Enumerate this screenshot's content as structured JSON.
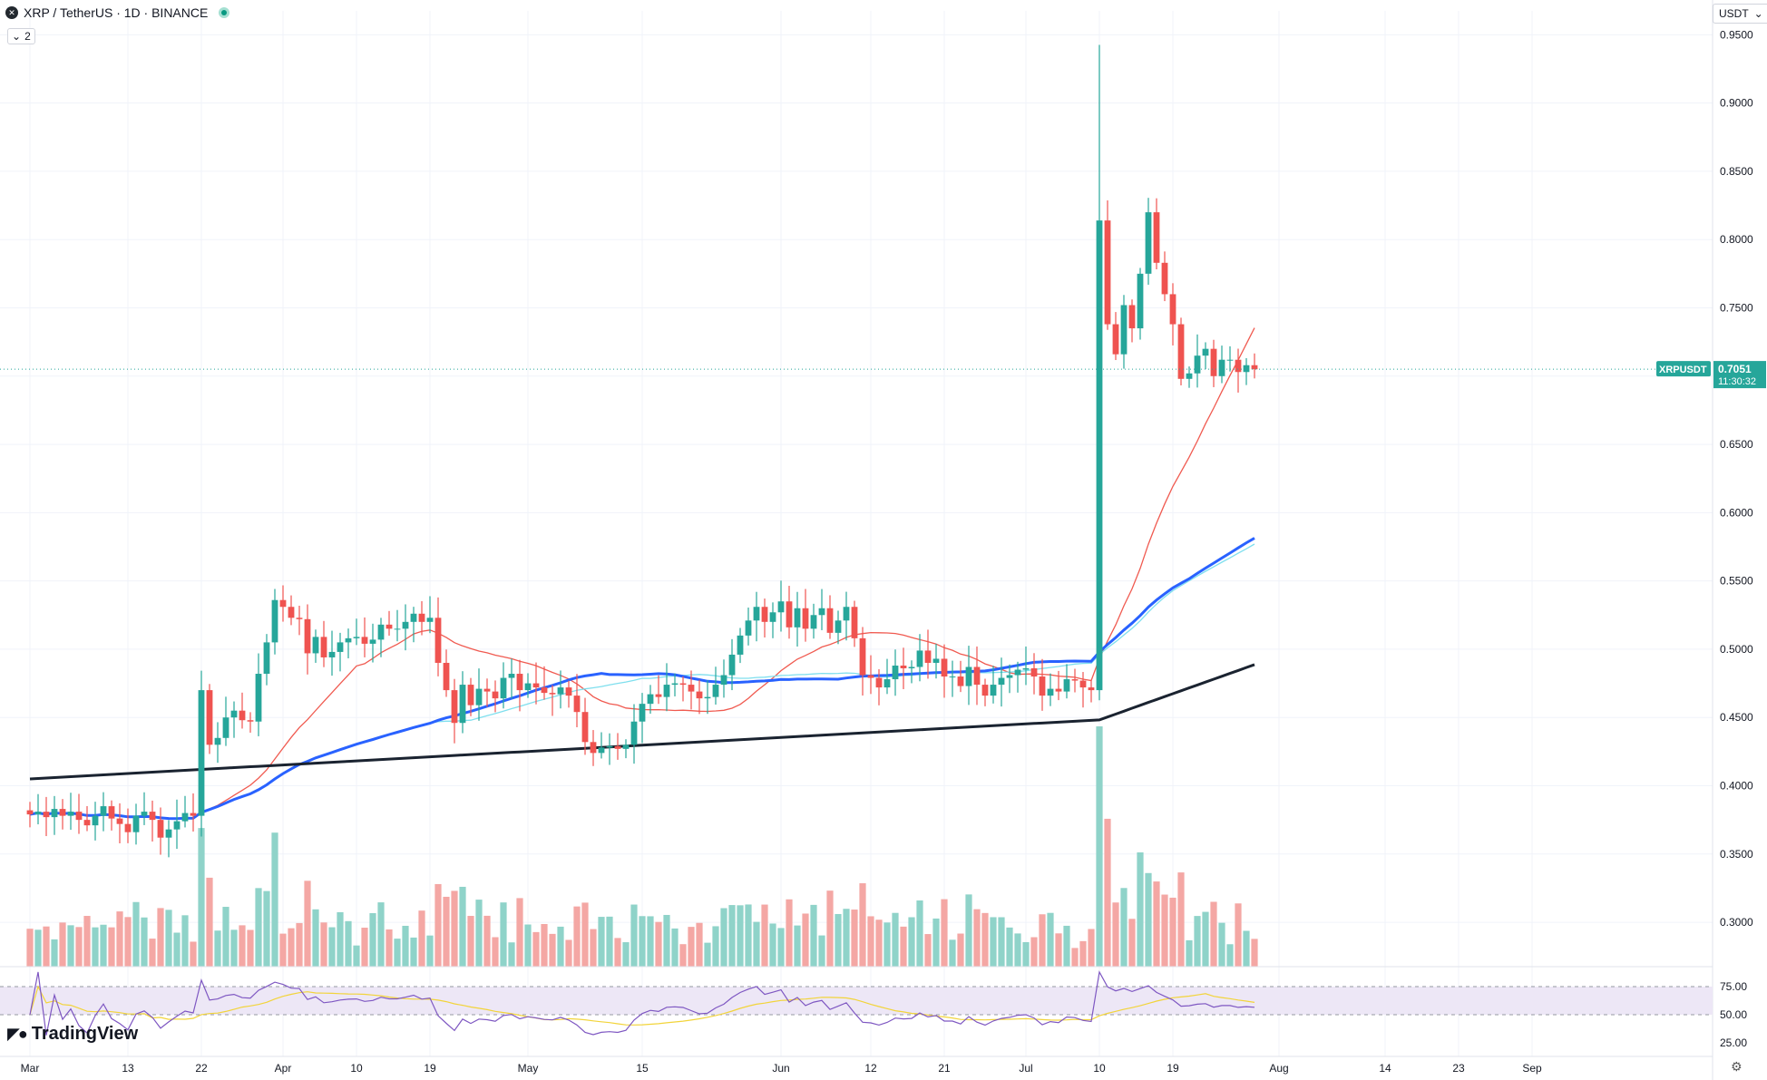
{
  "header": {
    "symbol_icon": "xrp-icon",
    "title": "XRP / TetherUS · 1D · BINANCE",
    "layers_count": "2",
    "currency": "USDT"
  },
  "logo": {
    "text": "TradingView"
  },
  "colors": {
    "up": "#26a69a",
    "down": "#ef5350",
    "up_vol": "#8fd3c9",
    "down_vol": "#f4a7a4",
    "ma_fast": "#f05a50",
    "ma_mid": "#2962ff",
    "ma_cyan": "#7fdfee",
    "ma_slow": "#1a2330",
    "rsi_line": "#7e57c2",
    "rsi_signal": "#f2d43a",
    "rsi_band": "#ede7f6",
    "badge": "#26a69a"
  },
  "chart_data": {
    "type": "candlestick",
    "symbol": "XRPUSDT",
    "last_price": "0.7051",
    "countdown": "11:30:32",
    "ylim": [
      0.2675,
      0.9675
    ],
    "y_ticks": [
      "0.9500",
      "0.9000",
      "0.8500",
      "0.8000",
      "0.7500",
      "0.7000",
      "0.6500",
      "0.6000",
      "0.5500",
      "0.5000",
      "0.4500",
      "0.4000",
      "0.3500",
      "0.3000"
    ],
    "x_ticks": [
      {
        "label": "Mar",
        "index": 0
      },
      {
        "label": "13",
        "index": 12
      },
      {
        "label": "22",
        "index": 21
      },
      {
        "label": "Apr",
        "index": 31
      },
      {
        "label": "10",
        "index": 40
      },
      {
        "label": "19",
        "index": 49
      },
      {
        "label": "May",
        "index": 61
      },
      {
        "label": "15",
        "index": 75
      },
      {
        "label": "Jun",
        "index": 92
      },
      {
        "label": "12",
        "index": 103
      },
      {
        "label": "21",
        "index": 112
      },
      {
        "label": "Jul",
        "index": 122
      },
      {
        "label": "10",
        "index": 131
      },
      {
        "label": "19",
        "index": 140
      },
      {
        "label": "Aug",
        "index": 153
      },
      {
        "label": "14",
        "index": 166
      },
      {
        "label": "23",
        "index": 175
      },
      {
        "label": "Sep",
        "index": 184
      }
    ],
    "closes": [
      0.379,
      0.381,
      0.377,
      0.383,
      0.378,
      0.381,
      0.375,
      0.371,
      0.378,
      0.385,
      0.376,
      0.372,
      0.366,
      0.378,
      0.381,
      0.375,
      0.362,
      0.368,
      0.374,
      0.38,
      0.378,
      0.47,
      0.43,
      0.435,
      0.45,
      0.455,
      0.448,
      0.447,
      0.482,
      0.505,
      0.536,
      0.531,
      0.523,
      0.522,
      0.497,
      0.509,
      0.494,
      0.498,
      0.505,
      0.508,
      0.509,
      0.504,
      0.507,
      0.518,
      0.515,
      0.515,
      0.52,
      0.526,
      0.52,
      0.523,
      0.49,
      0.47,
      0.446,
      0.474,
      0.459,
      0.471,
      0.469,
      0.464,
      0.479,
      0.482,
      0.47,
      0.475,
      0.472,
      0.468,
      0.467,
      0.472,
      0.466,
      0.454,
      0.432,
      0.424,
      0.428,
      0.429,
      0.427,
      0.43,
      0.447,
      0.46,
      0.467,
      0.465,
      0.474,
      0.475,
      0.474,
      0.469,
      0.464,
      0.465,
      0.474,
      0.481,
      0.496,
      0.51,
      0.521,
      0.531,
      0.52,
      0.527,
      0.535,
      0.516,
      0.53,
      0.515,
      0.525,
      0.53,
      0.512,
      0.521,
      0.531,
      0.508,
      0.481,
      0.479,
      0.472,
      0.478,
      0.488,
      0.486,
      0.487,
      0.499,
      0.49,
      0.493,
      0.48,
      0.48,
      0.473,
      0.487,
      0.474,
      0.466,
      0.474,
      0.479,
      0.481,
      0.485,
      0.486,
      0.48,
      0.466,
      0.471,
      0.469,
      0.478,
      0.477,
      0.472,
      0.47,
      0.814,
      0.738,
      0.716,
      0.752,
      0.735,
      0.775,
      0.82,
      0.783,
      0.76,
      0.738,
      0.698,
      0.702,
      0.715,
      0.72,
      0.7,
      0.712,
      0.712,
      0.703,
      0.708,
      0.705
    ],
    "volume_scale": [
      0,
      0.45
    ],
    "rsi_ticks": [
      "75.00",
      "50.00",
      "25.00"
    ],
    "rsi_band": [
      30,
      70
    ]
  }
}
